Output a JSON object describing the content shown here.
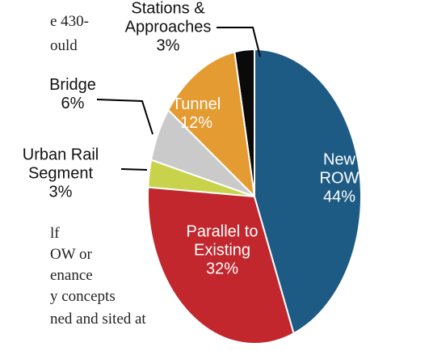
{
  "chart_data": {
    "type": "pie",
    "categories": [
      "New ROW",
      "Parallel to Existing",
      "Urban Rail Segment",
      "Bridge",
      "Tunnel",
      "Stations & Approaches"
    ],
    "values": [
      44,
      32,
      3,
      6,
      12,
      3
    ],
    "value_labels": [
      "44%",
      "32%",
      "3%",
      "6%",
      "12%",
      "3%"
    ],
    "colors": [
      "#1d5b84",
      "#c1272d",
      "#c9d24b",
      "#cacaca",
      "#e39b32",
      "#0a0a0a"
    ]
  },
  "background_text": [
    "e 430-",
    "ould",
    "lf",
    "OW or",
    "enance",
    "y concepts",
    "ned and sited at"
  ]
}
